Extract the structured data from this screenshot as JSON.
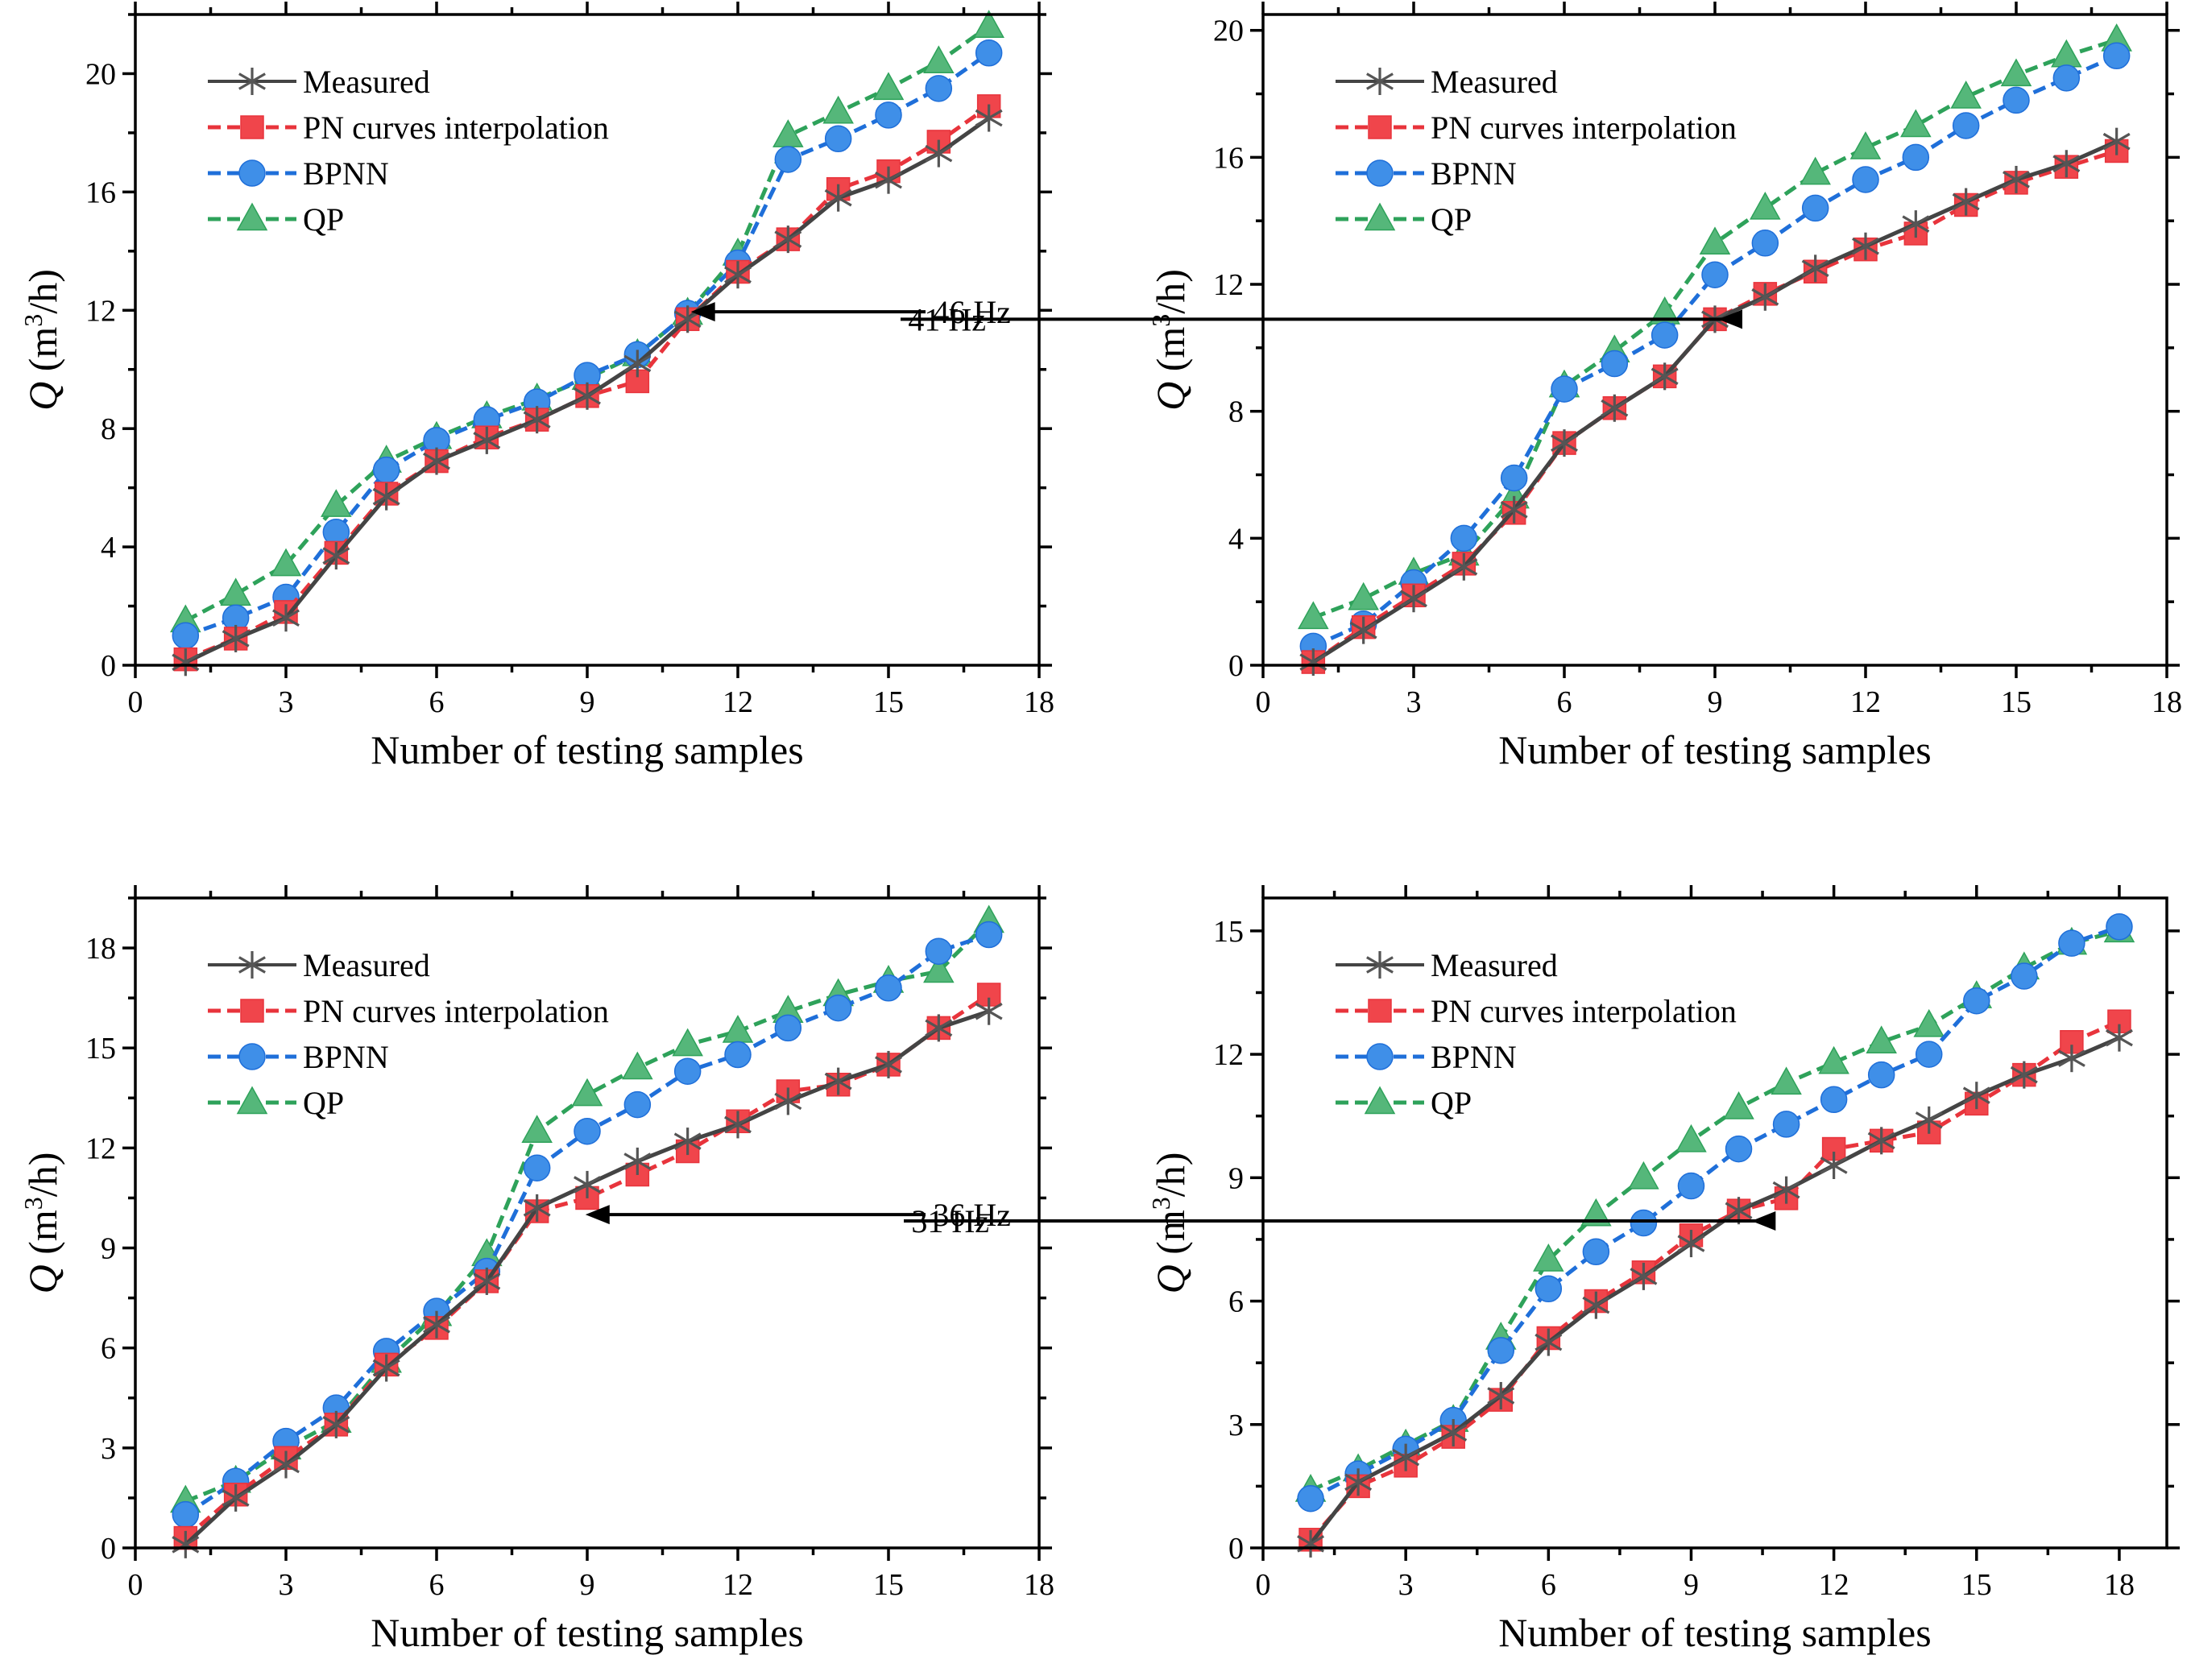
{
  "colors": {
    "measured": "#555555",
    "pn": "#F0454B",
    "bpnn": "#3F8FE8",
    "qp": "#55B77A",
    "measured_line": "#444444",
    "pn_line": "#E8343C",
    "bpnn_line": "#1F6FD9",
    "qp_line": "#2EA25A"
  },
  "legend": {
    "measured": "Measured",
    "pn": "PN curves interpolation",
    "bpnn": "BPNN",
    "qp": "QP"
  },
  "chart_data": [
    {
      "type": "line",
      "xlabel": "Number of testing samples",
      "ylabel_main": "Q",
      "ylabel_unit_pre": " (m",
      "ylabel_unit_sup": "3",
      "ylabel_unit_post": "/h)",
      "xlim": [
        0,
        18
      ],
      "ylim": [
        0,
        22
      ],
      "xticks": [
        0,
        3,
        6,
        9,
        12,
        15,
        18
      ],
      "yticks": [
        0,
        4,
        8,
        12,
        16,
        20
      ],
      "annotation": {
        "text": "46 Hz",
        "x": 11,
        "y": 11.95
      },
      "x": [
        1,
        2,
        3,
        4,
        5,
        6,
        7,
        8,
        9,
        10,
        11,
        12,
        13,
        14,
        15,
        16,
        17
      ],
      "series": [
        {
          "name": "Measured",
          "key": "measured",
          "marker": "asterisk",
          "values": [
            0.1,
            0.9,
            1.6,
            3.7,
            5.7,
            6.9,
            7.6,
            8.3,
            9.1,
            10.2,
            11.7,
            13.2,
            14.4,
            15.8,
            16.4,
            17.3,
            18.5
          ]
        },
        {
          "name": "PN curves interpolation",
          "key": "pn",
          "marker": "square",
          "values": [
            0.2,
            0.9,
            1.8,
            3.8,
            5.8,
            6.9,
            7.7,
            8.3,
            9.1,
            9.6,
            11.7,
            13.3,
            14.4,
            16.1,
            16.7,
            17.7,
            18.9
          ]
        },
        {
          "name": "BPNN",
          "key": "bpnn",
          "marker": "circle",
          "values": [
            1.0,
            1.6,
            2.3,
            4.5,
            6.6,
            7.6,
            8.3,
            8.9,
            9.8,
            10.5,
            11.9,
            13.6,
            17.1,
            17.8,
            18.6,
            19.5,
            20.7
          ]
        },
        {
          "name": "QP",
          "key": "qp",
          "marker": "triangle",
          "values": [
            1.5,
            2.4,
            3.4,
            5.4,
            6.9,
            7.7,
            8.4,
            9.0,
            9.7,
            10.5,
            11.9,
            13.9,
            17.9,
            18.7,
            19.5,
            20.4,
            21.6
          ]
        }
      ]
    },
    {
      "type": "line",
      "xlabel": "Number of testing samples",
      "ylabel_main": "Q",
      "ylabel_unit_pre": " (m",
      "ylabel_unit_sup": "3",
      "ylabel_unit_post": "/h)",
      "xlim": [
        0,
        18
      ],
      "ylim": [
        0,
        20.5
      ],
      "xticks": [
        0,
        3,
        6,
        9,
        12,
        15,
        18
      ],
      "yticks": [
        0,
        4,
        8,
        12,
        16,
        20
      ],
      "annotation": {
        "text": "41 Hz",
        "x": 9,
        "y": 10.9
      },
      "x": [
        1,
        2,
        3,
        4,
        5,
        6,
        7,
        8,
        9,
        10,
        11,
        12,
        13,
        14,
        15,
        16,
        17
      ],
      "series": [
        {
          "name": "Measured",
          "key": "measured",
          "marker": "asterisk",
          "values": [
            0.1,
            1.1,
            2.1,
            3.1,
            4.9,
            7.0,
            8.1,
            9.1,
            10.9,
            11.6,
            12.5,
            13.2,
            13.9,
            14.6,
            15.3,
            15.8,
            16.5
          ]
        },
        {
          "name": "PN curves interpolation",
          "key": "pn",
          "marker": "square",
          "values": [
            0.1,
            1.2,
            2.2,
            3.2,
            4.8,
            7.0,
            8.1,
            9.1,
            10.9,
            11.7,
            12.4,
            13.1,
            13.6,
            14.5,
            15.2,
            15.7,
            16.2
          ]
        },
        {
          "name": "BPNN",
          "key": "bpnn",
          "marker": "circle",
          "values": [
            0.6,
            1.3,
            2.6,
            4.0,
            5.9,
            8.7,
            9.5,
            10.4,
            12.3,
            13.3,
            14.4,
            15.3,
            16.0,
            17.0,
            17.8,
            18.5,
            19.2
          ]
        },
        {
          "name": "QP",
          "key": "qp",
          "marker": "triangle",
          "values": [
            1.5,
            2.1,
            2.9,
            3.5,
            5.3,
            8.8,
            9.9,
            11.1,
            13.3,
            14.4,
            15.5,
            16.3,
            17.0,
            17.9,
            18.6,
            19.2,
            19.7
          ]
        }
      ]
    },
    {
      "type": "line",
      "xlabel": "Number of testing samples",
      "ylabel_main": "Q",
      "ylabel_unit_pre": " (m",
      "ylabel_unit_sup": "3",
      "ylabel_unit_post": "/h)",
      "xlim": [
        0,
        18
      ],
      "ylim": [
        0,
        19.5
      ],
      "xticks": [
        0,
        3,
        6,
        9,
        12,
        15,
        18
      ],
      "yticks": [
        0,
        3,
        6,
        9,
        12,
        15,
        18
      ],
      "annotation": {
        "text": "36 Hz",
        "x": 8.9,
        "y": 10.0
      },
      "x": [
        1,
        2,
        3,
        4,
        5,
        6,
        7,
        8,
        9,
        10,
        11,
        12,
        13,
        14,
        15,
        16,
        17
      ],
      "series": [
        {
          "name": "Measured",
          "key": "measured",
          "marker": "asterisk",
          "values": [
            0.1,
            1.5,
            2.5,
            3.7,
            5.4,
            6.7,
            8.0,
            10.2,
            10.9,
            11.6,
            12.2,
            12.7,
            13.4,
            14.0,
            14.5,
            15.6,
            16.1
          ]
        },
        {
          "name": "PN curves interpolation",
          "key": "pn",
          "marker": "square",
          "values": [
            0.3,
            1.6,
            2.7,
            3.7,
            5.5,
            6.6,
            8.0,
            10.1,
            10.5,
            11.2,
            11.9,
            12.8,
            13.7,
            13.9,
            14.5,
            15.6,
            16.6
          ]
        },
        {
          "name": "BPNN",
          "key": "bpnn",
          "marker": "circle",
          "values": [
            1.0,
            2.0,
            3.2,
            4.2,
            5.9,
            7.1,
            8.3,
            11.4,
            12.5,
            13.3,
            14.3,
            14.8,
            15.6,
            16.2,
            16.8,
            17.9,
            18.4
          ]
        },
        {
          "name": "QP",
          "key": "qp",
          "marker": "triangle",
          "values": [
            1.4,
            2.0,
            3.0,
            3.8,
            5.6,
            7.0,
            8.8,
            12.5,
            13.6,
            14.4,
            15.1,
            15.5,
            16.1,
            16.6,
            17.0,
            17.3,
            18.8
          ]
        }
      ]
    },
    {
      "type": "line",
      "xlabel": "Number of testing samples",
      "ylabel_main": "Q",
      "ylabel_unit_pre": " (m",
      "ylabel_unit_sup": "3",
      "ylabel_unit_post": "/h)",
      "xlim": [
        0,
        19
      ],
      "ylim": [
        0,
        15.8
      ],
      "xticks": [
        0,
        3,
        6,
        9,
        12,
        15,
        18
      ],
      "yticks": [
        0,
        3,
        6,
        9,
        12,
        15
      ],
      "annotation": {
        "text": "31 Hz",
        "x": 10.2,
        "y": 7.95
      },
      "x": [
        1,
        2,
        3,
        4,
        5,
        6,
        7,
        8,
        9,
        10,
        11,
        12,
        13,
        14,
        15,
        16,
        17,
        18
      ],
      "series": [
        {
          "name": "Measured",
          "key": "measured",
          "marker": "asterisk",
          "values": [
            0.1,
            1.6,
            2.2,
            2.8,
            3.7,
            5.0,
            5.9,
            6.6,
            7.4,
            8.2,
            8.7,
            9.3,
            9.9,
            10.4,
            11.0,
            11.5,
            11.9,
            12.4
          ]
        },
        {
          "name": "PN curves interpolation",
          "key": "pn",
          "marker": "square",
          "values": [
            0.2,
            1.5,
            2.0,
            2.7,
            3.6,
            5.1,
            6.0,
            6.7,
            7.6,
            8.2,
            8.5,
            9.7,
            9.9,
            10.1,
            10.8,
            11.5,
            12.3,
            12.8
          ]
        },
        {
          "name": "BPNN",
          "key": "bpnn",
          "marker": "circle",
          "values": [
            1.2,
            1.8,
            2.4,
            3.1,
            4.8,
            6.3,
            7.2,
            7.9,
            8.8,
            9.7,
            10.3,
            10.9,
            11.5,
            12.0,
            13.3,
            13.9,
            14.7,
            15.1
          ]
        },
        {
          "name": "QP",
          "key": "qp",
          "marker": "triangle",
          "values": [
            1.4,
            1.9,
            2.5,
            3.1,
            5.1,
            7.0,
            8.1,
            9.0,
            9.9,
            10.7,
            11.3,
            11.8,
            12.3,
            12.7,
            13.4,
            14.1,
            14.7,
            15.0
          ]
        }
      ]
    }
  ]
}
